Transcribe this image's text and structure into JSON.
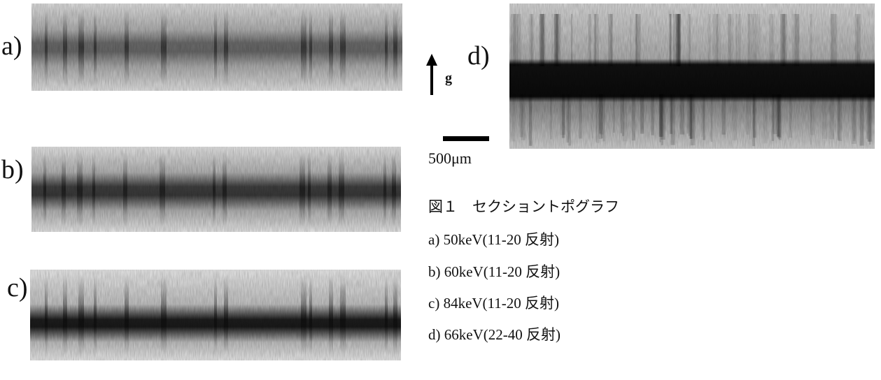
{
  "panels": [
    {
      "label": "a)"
    },
    {
      "label": "b)"
    },
    {
      "label": "c)"
    },
    {
      "label": "d)"
    }
  ],
  "arrow_label": "g",
  "scale_bar_label": "500μm",
  "caption": {
    "title": "図１　セクショントポグラフ",
    "items": [
      "a) 50keV(11-20 反射)",
      "b) 60keV(11-20 反射)",
      "c) 84keV(11-20 反射)",
      "d) 66keV(22-40 反射)"
    ]
  }
}
